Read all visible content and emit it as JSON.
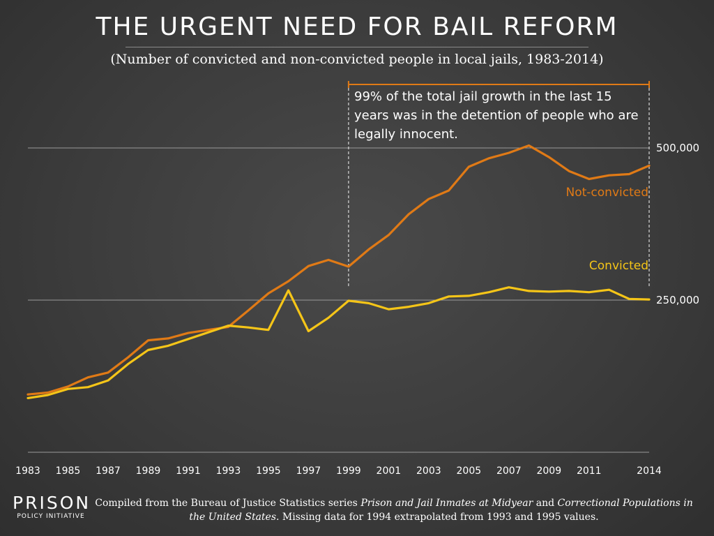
{
  "title": "THE URGENT NEED FOR BAIL REFORM",
  "subtitle": "(Number of convicted and non-convicted people in local jails, 1983-2014)",
  "annotation": "99% of the total jail growth in the last 15 years was in the detention of people who are legally innocent.",
  "source": {
    "part1": "Compiled from the Bureau of Justice Statistics series ",
    "title1": "Prison and Jail Inmates at Midyear",
    "part2": " and ",
    "title2": "Correctional Populations in the United States",
    "part3": ". Missing data for 1994 extrapolated from 1993 and 1995 values."
  },
  "logo": {
    "big": "PRISON",
    "small": "POLICY INITIATIVE"
  },
  "colors": {
    "not_convicted": "#e07a16",
    "convicted": "#f5c518",
    "annotation_bracket": "#e07a16",
    "grid": "#9a9a9a"
  },
  "chart_data": {
    "type": "line",
    "title": "THE URGENT NEED FOR BAIL REFORM",
    "x": [
      1983,
      1984,
      1985,
      1986,
      1987,
      1988,
      1989,
      1990,
      1991,
      1992,
      1993,
      1994,
      1995,
      1996,
      1997,
      1998,
      1999,
      2000,
      2001,
      2002,
      2003,
      2004,
      2005,
      2006,
      2007,
      2008,
      2009,
      2010,
      2011,
      2012,
      2013,
      2014
    ],
    "x_tick_labels": [
      "1983",
      "1985",
      "1987",
      "1989",
      "1991",
      "1993",
      "1995",
      "1997",
      "1999",
      "2001",
      "2003",
      "2005",
      "2007",
      "2009",
      "2011",
      "2014"
    ],
    "y_tick_labels": [
      "250,000",
      "500,000"
    ],
    "y_ticks": [
      250000,
      500000
    ],
    "ylim": [
      0,
      500000
    ],
    "grid": true,
    "series": [
      {
        "name": "Not-convicted",
        "values": [
          95000,
          98000,
          108000,
          123000,
          131000,
          156000,
          184000,
          187000,
          196000,
          201000,
          206000,
          233000,
          261000,
          281000,
          306000,
          316000,
          305000,
          333000,
          357000,
          391000,
          416000,
          430000,
          469000,
          483000,
          492000,
          504000,
          485000,
          462000,
          449000,
          455000,
          457000,
          471000
        ]
      },
      {
        "name": "Convicted",
        "values": [
          89000,
          94000,
          104000,
          107000,
          118000,
          145000,
          168000,
          175000,
          186000,
          197000,
          208000,
          205000,
          201000,
          266000,
          199000,
          221000,
          249000,
          245000,
          235000,
          239000,
          245000,
          256000,
          257000,
          263000,
          271000,
          265000,
          264000,
          265000,
          263000,
          267000,
          252000,
          251000
        ]
      }
    ],
    "annotations": [
      {
        "text": "99% of the total jail growth in the last 15 years was in the detention of people who are legally innocent.",
        "x_start": 1999,
        "x_end": 2014
      }
    ]
  }
}
